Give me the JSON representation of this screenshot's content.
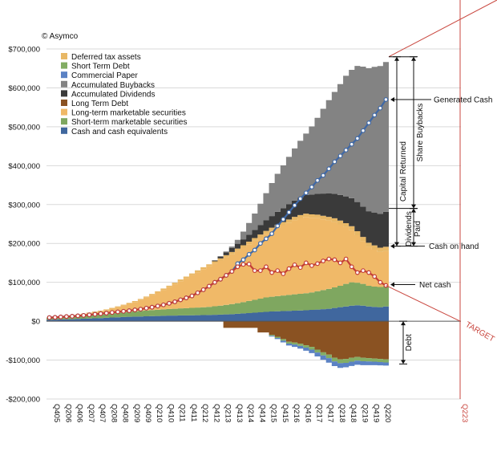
{
  "chart_data": {
    "type": "area",
    "copyright": "© Asymco",
    "ylim": [
      -200000,
      700000
    ],
    "y_ticks": [
      {
        "value": 700000,
        "label": "$700,000"
      },
      {
        "value": 600000,
        "label": "$600,000"
      },
      {
        "value": 500000,
        "label": "$500,000"
      },
      {
        "value": 400000,
        "label": "$400,000"
      },
      {
        "value": 300000,
        "label": "$300,000"
      },
      {
        "value": 200000,
        "label": "$200,000"
      },
      {
        "value": 100000,
        "label": "$100,000"
      },
      {
        "value": 0,
        "label": "$0"
      },
      {
        "value": -100000,
        "label": "-$100,000"
      },
      {
        "value": -200000,
        "label": "-$200,000"
      }
    ],
    "x_tick_labels": [
      "Q405",
      "Q206",
      "Q406",
      "Q207",
      "Q407",
      "Q208",
      "Q408",
      "Q209",
      "Q409",
      "Q210",
      "Q410",
      "Q211",
      "Q411",
      "Q212",
      "Q412",
      "Q213",
      "Q413",
      "Q214",
      "Q414",
      "Q215",
      "Q415",
      "Q216",
      "Q416",
      "Q217",
      "Q417",
      "Q218",
      "Q418",
      "Q219",
      "Q419",
      "Q220"
    ],
    "target_label": "Q223",
    "legend": [
      {
        "name": "Deferred tax assets",
        "color": "#e8b866"
      },
      {
        "name": "Short Term Debt",
        "color": "#83ad64"
      },
      {
        "name": "Commercial Paper",
        "color": "#5b82c4"
      },
      {
        "name": "Accumulated Buybacks",
        "color": "#838383"
      },
      {
        "name": "Accumulated Dividends",
        "color": "#3a3a3a"
      },
      {
        "name": "Long Term Debt",
        "color": "#8a5222"
      },
      {
        "name": "Long-term marketable securities",
        "color": "#f0b968"
      },
      {
        "name": "Short-term marketable securities",
        "color": "#7fa760"
      },
      {
        "name": "Cash and cash equivalents",
        "color": "#40679e"
      }
    ],
    "quarters": 60,
    "series": [
      {
        "key": "cash",
        "values": [
          3491,
          4000,
          4500,
          4900,
          5200,
          5800,
          6300,
          6900,
          7400,
          8000,
          8800,
          9400,
          10000,
          10700,
          11300,
          11800,
          12000,
          12500,
          13000,
          13500,
          14000,
          14500,
          14500,
          15000,
          15000,
          15200,
          15500,
          15800,
          16000,
          16500,
          17000,
          17500,
          18000,
          19000,
          20000,
          21000,
          22000,
          23000,
          24000,
          25000,
          25500,
          26000,
          26500,
          27000,
          27500,
          28000,
          29000,
          30000,
          31000,
          32000,
          34000,
          36000,
          38000,
          40000,
          41000,
          40000,
          38000,
          37000,
          36000,
          38000
        ]
      },
      {
        "key": "short_securities",
        "values": [
          4800,
          5000,
          5300,
          5800,
          6200,
          6700,
          7200,
          8000,
          8500,
          9000,
          9700,
          10400,
          11000,
          11800,
          12600,
          13400,
          14500,
          15000,
          15500,
          16000,
          16500,
          17000,
          17500,
          18000,
          18500,
          19000,
          19500,
          20000,
          21000,
          22000,
          23000,
          24500,
          26000,
          27500,
          29000,
          31000,
          33000,
          35000,
          37000,
          38000,
          39000,
          40000,
          41000,
          42000,
          43000,
          44000,
          45000,
          47000,
          49000,
          51000,
          53000,
          55000,
          58000,
          60000,
          58000,
          56000,
          53000,
          52000,
          52000,
          52000
        ]
      },
      {
        "key": "long_securities",
        "values": [
          0,
          500,
          1000,
          1800,
          2500,
          3300,
          4200,
          5500,
          7000,
          8500,
          10000,
          12500,
          15000,
          17800,
          20800,
          24000,
          28000,
          33000,
          38500,
          44000,
          50000,
          56000,
          63000,
          70000,
          77000,
          84000,
          91000,
          98000,
          104000,
          110000,
          116000,
          122000,
          128000,
          134000,
          140000,
          146000,
          152000,
          158000,
          164000,
          170000,
          176000,
          181000,
          186000,
          191000,
          194000,
          196000,
          192000,
          188000,
          182000,
          176000,
          168000,
          158000,
          146000,
          134000,
          122000,
          110000,
          100000,
          95000,
          90000,
          90000
        ]
      },
      {
        "key": "deferred_tax",
        "values": [
          1000,
          1100,
          1200,
          1300,
          1400,
          1500,
          1600,
          1700,
          1800,
          1900,
          2000,
          2100,
          2200,
          2300,
          2400,
          2600,
          2800,
          3000,
          3200,
          3400,
          3600,
          3800,
          4000,
          4200,
          4400,
          4600,
          4800,
          5000,
          5200,
          5400,
          5600,
          5800,
          6000,
          6200,
          6400,
          6600,
          6800,
          7000,
          7200,
          7400,
          7600,
          7800,
          8000,
          8200,
          8400,
          8600,
          8800,
          9000,
          9200,
          9400,
          9600,
          9800,
          10000,
          10200,
          10400,
          10600,
          10800,
          11000,
          11200,
          11400
        ]
      },
      {
        "key": "dividends",
        "values": [
          0,
          0,
          0,
          0,
          0,
          0,
          0,
          0,
          0,
          0,
          0,
          0,
          0,
          0,
          0,
          0,
          0,
          0,
          0,
          0,
          0,
          0,
          0,
          0,
          0,
          0,
          0,
          0,
          0,
          2500,
          5000,
          7500,
          10000,
          12500,
          15000,
          18000,
          21000,
          24000,
          27000,
          30000,
          33000,
          36000,
          39000,
          42000,
          45000,
          48000,
          51000,
          54000,
          57000,
          60000,
          63000,
          66000,
          69000,
          72000,
          75000,
          78000,
          81000,
          84000,
          87000,
          90000
        ]
      },
      {
        "key": "buybacks",
        "values": [
          0,
          0,
          0,
          0,
          0,
          0,
          0,
          0,
          0,
          0,
          0,
          0,
          0,
          0,
          0,
          0,
          0,
          0,
          0,
          0,
          0,
          0,
          0,
          0,
          0,
          0,
          0,
          0,
          0,
          0,
          0,
          2000,
          4000,
          10000,
          20000,
          30000,
          42000,
          55000,
          70000,
          85000,
          98000,
          110000,
          122000,
          134000,
          146000,
          158000,
          175000,
          195000,
          218000,
          240000,
          262000,
          285000,
          310000,
          330000,
          350000,
          360000,
          368000,
          375000,
          380000,
          385000
        ]
      },
      {
        "key": "long_term_debt",
        "values": [
          0,
          0,
          0,
          0,
          0,
          0,
          0,
          0,
          0,
          0,
          0,
          0,
          0,
          0,
          0,
          0,
          0,
          0,
          0,
          0,
          0,
          0,
          0,
          0,
          0,
          0,
          0,
          0,
          0,
          0,
          0,
          -17000,
          -17000,
          -17000,
          -17000,
          -17000,
          -17000,
          -29000,
          -29000,
          -35000,
          -40000,
          -46000,
          -53000,
          -55000,
          -58000,
          -62000,
          -66000,
          -73000,
          -80000,
          -86000,
          -94000,
          -98000,
          -97000,
          -94000,
          -92000,
          -94000,
          -95000,
          -96000,
          -97000,
          -98000
        ]
      },
      {
        "key": "short_term_debt",
        "values": [
          0,
          0,
          0,
          0,
          0,
          0,
          0,
          0,
          0,
          0,
          0,
          0,
          0,
          0,
          0,
          0,
          0,
          0,
          0,
          0,
          0,
          0,
          0,
          0,
          0,
          0,
          0,
          0,
          0,
          0,
          0,
          0,
          0,
          0,
          0,
          0,
          0,
          0,
          0,
          -2500,
          -3000,
          -4000,
          -4500,
          -5000,
          -5500,
          -6000,
          -7000,
          -7500,
          -8000,
          -9000,
          -9500,
          -10000,
          -10000,
          -10000,
          -9500,
          -9000,
          -8500,
          -8000,
          -8000,
          -8000
        ]
      },
      {
        "key": "commercial_paper",
        "values": [
          0,
          0,
          0,
          0,
          0,
          0,
          0,
          0,
          0,
          0,
          0,
          0,
          0,
          0,
          0,
          0,
          0,
          0,
          0,
          0,
          0,
          0,
          0,
          0,
          0,
          0,
          0,
          0,
          0,
          0,
          0,
          0,
          0,
          0,
          0,
          0,
          0,
          0,
          0,
          -2000,
          -3000,
          -4500,
          -5000,
          -6000,
          -7000,
          -8000,
          -9000,
          -10000,
          -11000,
          -11500,
          -12000,
          -12000,
          -11500,
          -11000,
          -10500,
          -10000,
          -9500,
          -9000,
          -8500,
          -8000
        ]
      }
    ],
    "generated_cash": [
      9300,
      10000,
      11000,
      12000,
      12700,
      13800,
      15000,
      16400,
      17900,
      19400,
      20800,
      22400,
      24000,
      25500,
      27000,
      29000,
      31000,
      33500,
      36000,
      39000,
      42000,
      46000,
      50000,
      55000,
      60000,
      65000,
      73000,
      81000,
      90000,
      100000,
      108000,
      118000,
      128000,
      148000,
      158000,
      172000,
      183000,
      200000,
      212000,
      225000,
      245000,
      262000,
      280000,
      298000,
      315000,
      330000,
      345000,
      362000,
      375000,
      392000,
      410000,
      425000,
      440000,
      455000,
      470000,
      490000,
      510000,
      530000,
      548000,
      570000
    ],
    "net_cash": [
      9300,
      10000,
      11000,
      12000,
      12700,
      13800,
      15000,
      16400,
      17900,
      19400,
      20800,
      22400,
      24000,
      25500,
      27000,
      29000,
      31000,
      33500,
      36000,
      39000,
      42000,
      46000,
      50000,
      55000,
      60000,
      65000,
      73000,
      81000,
      90000,
      100000,
      108000,
      118000,
      128000,
      140000,
      146000,
      147000,
      130000,
      130000,
      140000,
      125000,
      130000,
      122000,
      135000,
      145000,
      138000,
      150000,
      143000,
      148000,
      155000,
      160000,
      158000,
      150000,
      160000,
      140000,
      125000,
      130000,
      125000,
      115000,
      100000,
      92000
    ],
    "annotations": {
      "generated_cash": "Generated Cash",
      "capital_returned": "Capital Returned",
      "share_buybacks": "Share Buybacks",
      "dividends_paid_1": "Dividends",
      "dividends_paid_2": "Paid",
      "cash_on_hand": "Cash on hand",
      "net_cash": "Net cash",
      "debt": "Debt",
      "target": "TARGET"
    },
    "colors": {
      "generated_cash_line": "#3f68a6",
      "net_cash_line": "#c33d36",
      "target_line": "#c9473f",
      "grid": "#d9d9d9"
    }
  }
}
